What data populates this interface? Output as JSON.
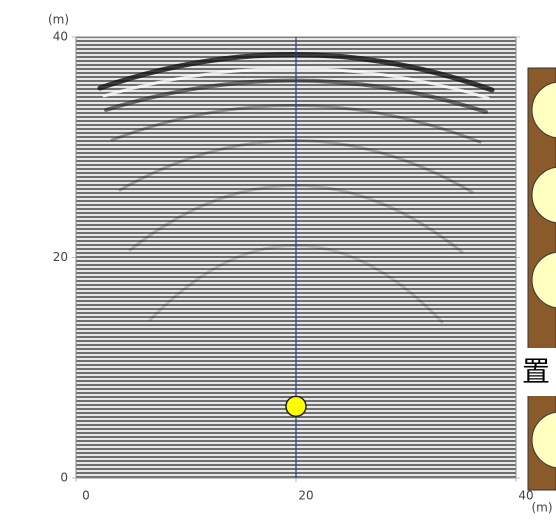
{
  "chart_data": {
    "type": "scatter",
    "x": [
      20
    ],
    "values": [
      6.5
    ],
    "color": "#ffff00",
    "xlim": [
      0,
      40
    ],
    "ylim": [
      0,
      40
    ],
    "xticks": [
      0,
      20,
      40
    ],
    "yticks": [
      0,
      20,
      40
    ],
    "x_unit": "(m)",
    "y_unit": "(m)",
    "vline": 20,
    "vline_color": "#2a3f9a",
    "annotation": "置"
  }
}
